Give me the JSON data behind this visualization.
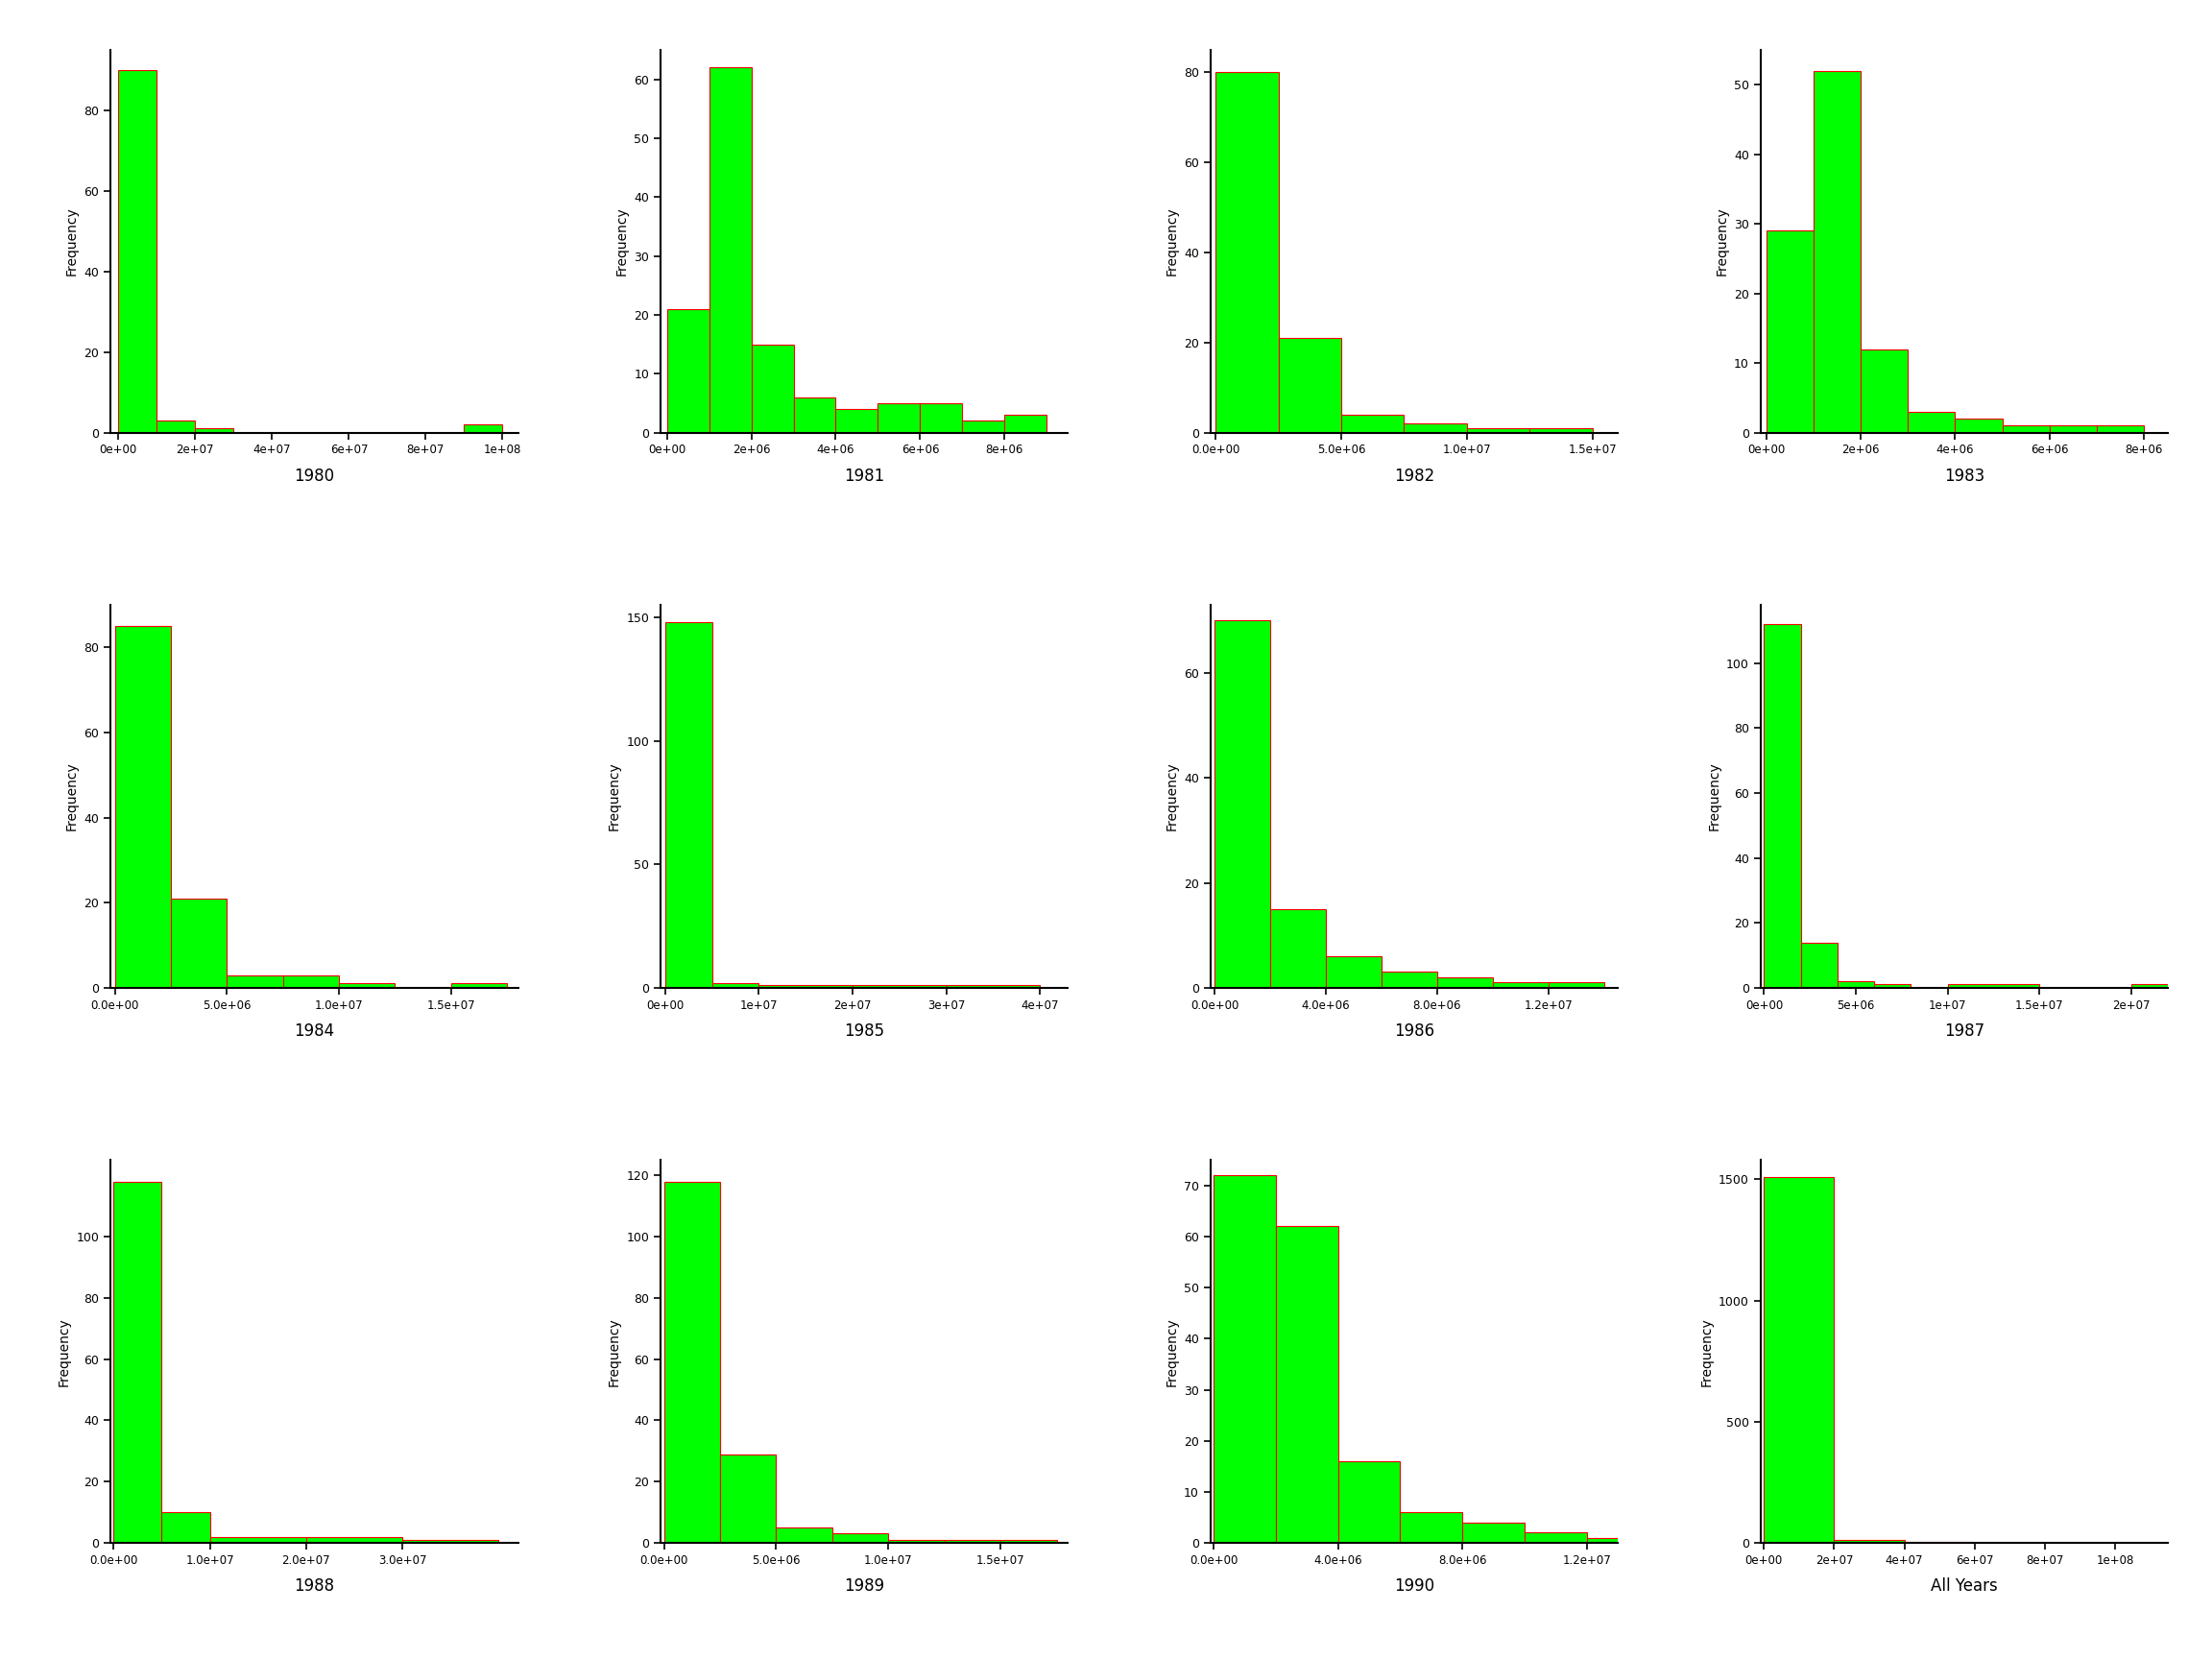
{
  "bar_color": "#00FF00",
  "edge_color": "#FF0000",
  "ylabel": "Frequency",
  "background": "#FFFFFF",
  "plots": [
    {
      "year": "1980",
      "bin_edges": [
        0,
        10000000.0,
        20000000.0,
        30000000.0,
        40000000.0,
        50000000.0,
        60000000.0,
        70000000.0,
        80000000.0,
        90000000.0,
        100000000.0
      ],
      "counts": [
        90,
        3,
        1,
        0,
        0,
        0,
        0,
        0,
        0,
        2
      ],
      "xlim": [
        -2000000.0,
        104000000.0
      ],
      "ylim": [
        0,
        95
      ],
      "yticks": [
        0,
        20,
        40,
        60,
        80
      ],
      "xticks": [
        0,
        20000000.0,
        40000000.0,
        60000000.0,
        80000000.0,
        100000000.0
      ],
      "xtick_labels": [
        "0e+00",
        "2e+07",
        "4e+07",
        "6e+07",
        "8e+07",
        "1e+08"
      ]
    },
    {
      "year": "1981",
      "bin_edges": [
        0,
        1000000.0,
        2000000.0,
        3000000.0,
        4000000.0,
        5000000.0,
        6000000.0,
        7000000.0,
        8000000.0,
        9000000.0
      ],
      "counts": [
        21,
        62,
        15,
        6,
        4,
        5,
        5,
        2,
        3
      ],
      "xlim": [
        -150000.0,
        9500000.0
      ],
      "ylim": [
        0,
        65
      ],
      "yticks": [
        0,
        10,
        20,
        30,
        40,
        50,
        60
      ],
      "xticks": [
        0,
        2000000.0,
        4000000.0,
        6000000.0,
        8000000.0
      ],
      "xtick_labels": [
        "0e+00",
        "2e+06",
        "4e+06",
        "6e+06",
        "8e+06"
      ]
    },
    {
      "year": "1982",
      "bin_edges": [
        0,
        2500000.0,
        5000000.0,
        7500000.0,
        10000000.0,
        12500000.0,
        15000000.0
      ],
      "counts": [
        80,
        21,
        4,
        2,
        1,
        1
      ],
      "xlim": [
        -200000.0,
        16000000.0
      ],
      "ylim": [
        0,
        85
      ],
      "yticks": [
        0,
        20,
        40,
        60,
        80
      ],
      "xticks": [
        0,
        5000000.0,
        10000000.0,
        15000000.0
      ],
      "xtick_labels": [
        "0.0e+00",
        "5.0e+06",
        "1.0e+07",
        "1.5e+07"
      ]
    },
    {
      "year": "1983",
      "bin_edges": [
        0,
        1000000.0,
        2000000.0,
        3000000.0,
        4000000.0,
        5000000.0,
        6000000.0,
        7000000.0,
        8000000.0
      ],
      "counts": [
        29,
        52,
        12,
        3,
        2,
        1,
        1,
        1
      ],
      "xlim": [
        -120000.0,
        8500000.0
      ],
      "ylim": [
        0,
        55
      ],
      "yticks": [
        0,
        10,
        20,
        30,
        40,
        50
      ],
      "xticks": [
        0,
        2000000.0,
        4000000.0,
        6000000.0,
        8000000.0
      ],
      "xtick_labels": [
        "0e+00",
        "2e+06",
        "4e+06",
        "6e+06",
        "8e+06"
      ]
    },
    {
      "year": "1984",
      "bin_edges": [
        0,
        2500000.0,
        5000000.0,
        7500000.0,
        10000000.0,
        12500000.0,
        15000000.0,
        17500000.0
      ],
      "counts": [
        85,
        21,
        3,
        3,
        1,
        0,
        1
      ],
      "xlim": [
        -200000.0,
        18000000.0
      ],
      "ylim": [
        0,
        90
      ],
      "yticks": [
        0,
        20,
        40,
        60,
        80
      ],
      "xticks": [
        0,
        5000000.0,
        10000000.0,
        15000000.0
      ],
      "xtick_labels": [
        "0.0e+00",
        "5.0e+06",
        "1.0e+07",
        "1.5e+07"
      ]
    },
    {
      "year": "1985",
      "bin_edges": [
        0,
        5000000.0,
        10000000.0,
        20000000.0,
        30000000.0,
        40000000.0
      ],
      "counts": [
        148,
        2,
        1,
        1,
        1
      ],
      "xlim": [
        -500000.0,
        43000000.0
      ],
      "ylim": [
        0,
        155
      ],
      "yticks": [
        0,
        50,
        100,
        150
      ],
      "xticks": [
        0,
        10000000.0,
        20000000.0,
        30000000.0,
        40000000.0
      ],
      "xtick_labels": [
        "0e+00",
        "1e+07",
        "2e+07",
        "3e+07",
        "4e+07"
      ]
    },
    {
      "year": "1986",
      "bin_edges": [
        0,
        2000000.0,
        4000000.0,
        6000000.0,
        8000000.0,
        10000000.0,
        12000000.0,
        14000000.0
      ],
      "counts": [
        70,
        15,
        6,
        3,
        2,
        1,
        1
      ],
      "xlim": [
        -150000.0,
        14500000.0
      ],
      "ylim": [
        0,
        73
      ],
      "yticks": [
        0,
        20,
        40,
        60
      ],
      "xticks": [
        0,
        4000000.0,
        8000000.0,
        12000000.0
      ],
      "xtick_labels": [
        "0.0e+00",
        "4.0e+06",
        "8.0e+06",
        "1.2e+07"
      ]
    },
    {
      "year": "1987",
      "bin_edges": [
        0,
        2000000.0,
        4000000.0,
        6000000.0,
        8000000.0,
        10000000.0,
        15000000.0,
        20000000.0,
        25000000.0
      ],
      "counts": [
        112,
        14,
        2,
        1,
        0,
        1,
        0,
        1
      ],
      "xlim": [
        -200000.0,
        22000000.0
      ],
      "ylim": [
        0,
        118
      ],
      "yticks": [
        0,
        20,
        40,
        60,
        80,
        100
      ],
      "xticks": [
        0,
        5000000.0,
        10000000.0,
        15000000.0,
        20000000.0
      ],
      "xtick_labels": [
        "0e+00",
        "5e+06",
        "1e+07",
        "1.5e+07",
        "2e+07"
      ]
    },
    {
      "year": "1988",
      "bin_edges": [
        0,
        5000000.0,
        10000000.0,
        20000000.0,
        30000000.0,
        40000000.0
      ],
      "counts": [
        118,
        10,
        2,
        2,
        1
      ],
      "xlim": [
        -300000.0,
        42000000.0
      ],
      "ylim": [
        0,
        125
      ],
      "yticks": [
        0,
        20,
        40,
        60,
        80,
        100
      ],
      "xticks": [
        0,
        10000000.0,
        20000000.0,
        30000000.0
      ],
      "xtick_labels": [
        "0.0e+00",
        "1.0e+07",
        "2.0e+07",
        "3.0e+07"
      ]
    },
    {
      "year": "1989",
      "bin_edges": [
        0,
        2500000.0,
        5000000.0,
        7500000.0,
        10000000.0,
        12500000.0,
        15000000.0,
        17500000.0
      ],
      "counts": [
        118,
        29,
        5,
        3,
        1,
        1,
        1
      ],
      "xlim": [
        -150000.0,
        18000000.0
      ],
      "ylim": [
        0,
        125
      ],
      "yticks": [
        0,
        20,
        40,
        60,
        80,
        100,
        120
      ],
      "xticks": [
        0,
        5000000.0,
        10000000.0,
        15000000.0
      ],
      "xtick_labels": [
        "0.0e+00",
        "5.0e+06",
        "1.0e+07",
        "1.5e+07"
      ]
    },
    {
      "year": "1990",
      "bin_edges": [
        0,
        2000000.0,
        4000000.0,
        6000000.0,
        8000000.0,
        10000000.0,
        12000000.0,
        14000000.0
      ],
      "counts": [
        72,
        62,
        16,
        6,
        4,
        2,
        1
      ],
      "xlim": [
        -100000.0,
        13000000.0
      ],
      "ylim": [
        0,
        75
      ],
      "yticks": [
        0,
        10,
        20,
        30,
        40,
        50,
        60,
        70
      ],
      "xticks": [
        0,
        4000000.0,
        8000000.0,
        12000000.0
      ],
      "xtick_labels": [
        "0.0e+00",
        "4.0e+06",
        "8.0e+06",
        "1.2e+07"
      ]
    },
    {
      "year": "All Years",
      "bin_edges": [
        0,
        20000000.0,
        40000000.0,
        60000000.0,
        80000000.0,
        100000000.0,
        120000000.0
      ],
      "counts": [
        1508,
        12,
        4,
        2,
        2,
        1
      ],
      "xlim": [
        -1000000.0,
        115000000.0
      ],
      "ylim": [
        0,
        1580
      ],
      "yticks": [
        0,
        500,
        1000,
        1500
      ],
      "xticks": [
        0,
        20000000.0,
        40000000.0,
        60000000.0,
        80000000.0,
        100000000.0
      ],
      "xtick_labels": [
        "0e+00",
        "2e+07",
        "4e+07",
        "6e+07",
        "8e+07",
        "1e+08"
      ]
    }
  ]
}
